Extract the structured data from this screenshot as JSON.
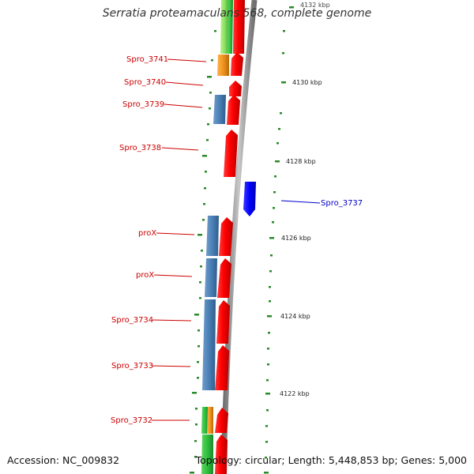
{
  "title": "Serratia proteamaculans 568, complete genome",
  "accession": "Accession: NC_009832",
  "summary": "Topology: circular; Length: 5,448,853 bp; Genes: 5,000",
  "ruler_labels": [
    "4132 kbp",
    "4130 kbp",
    "4128 kbp",
    "4126 kbp",
    "4124 kbp",
    "4122 kbp"
  ],
  "gene_labels": {
    "spro_3741": "Spro_3741",
    "spro_3740": "Spro_3740",
    "spro_3739": "Spro_3739",
    "spro_3738": "Spro_3738",
    "spro_3737": "Spro_3737",
    "prox_1": "proX",
    "prox_2": "proX",
    "spro_3734": "Spro_3734",
    "spro_3733": "Spro_3733",
    "spro_3732": "Spro_3732"
  },
  "colors": {
    "forward_strand": "#ff0000",
    "reverse_strand": "#0000ff",
    "label_forward": "#cc0000",
    "label_reverse": "#0000cc",
    "cog_blue": "#4a7fb5",
    "cog_green": "#7ed957",
    "cog_orange": "#f0941e",
    "backbone": "#9a9a9a",
    "tick": "#2a8a2a"
  }
}
